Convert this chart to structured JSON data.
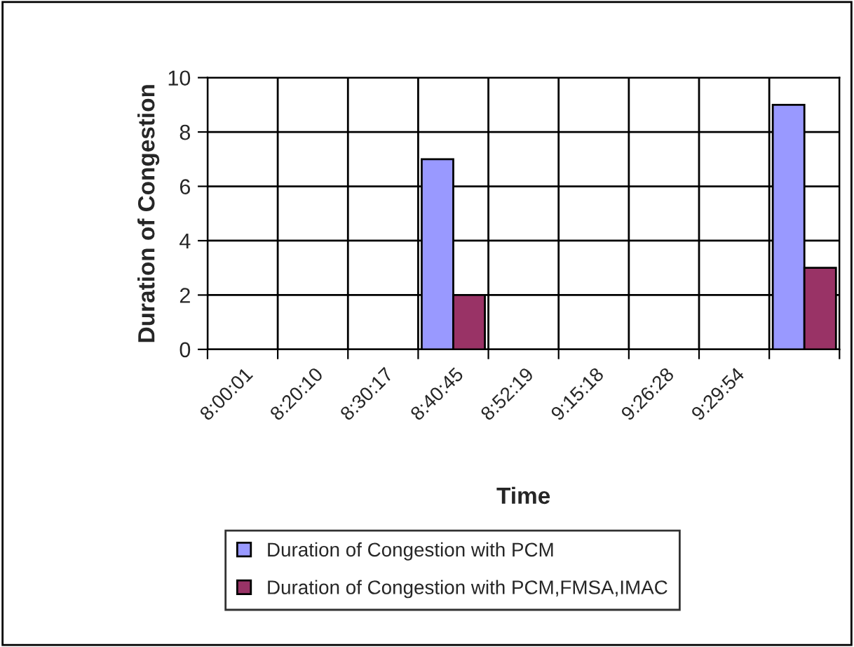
{
  "chart_data": {
    "type": "bar",
    "xlabel": "Time",
    "ylabel": "Duration of Congestion",
    "categories": [
      "8:00:01",
      "8:20:10",
      "8:30:17",
      "8:40:45",
      "8:52:19",
      "9:15:18",
      "9:26:28",
      "9:29:54",
      null
    ],
    "series": [
      {
        "name": "Duration of Congestion with PCM",
        "color": "#9999ff",
        "values": [
          null,
          null,
          null,
          7,
          null,
          null,
          null,
          null,
          9
        ]
      },
      {
        "name": "Duration of Congestion with PCM,FMSA,IMAC",
        "color": "#993366",
        "values": [
          null,
          null,
          null,
          2,
          null,
          null,
          null,
          null,
          3
        ]
      }
    ],
    "ylim": [
      0,
      10
    ],
    "yticks": [
      0,
      2,
      4,
      6,
      8,
      10
    ],
    "grid": true,
    "legend": "bottom"
  }
}
